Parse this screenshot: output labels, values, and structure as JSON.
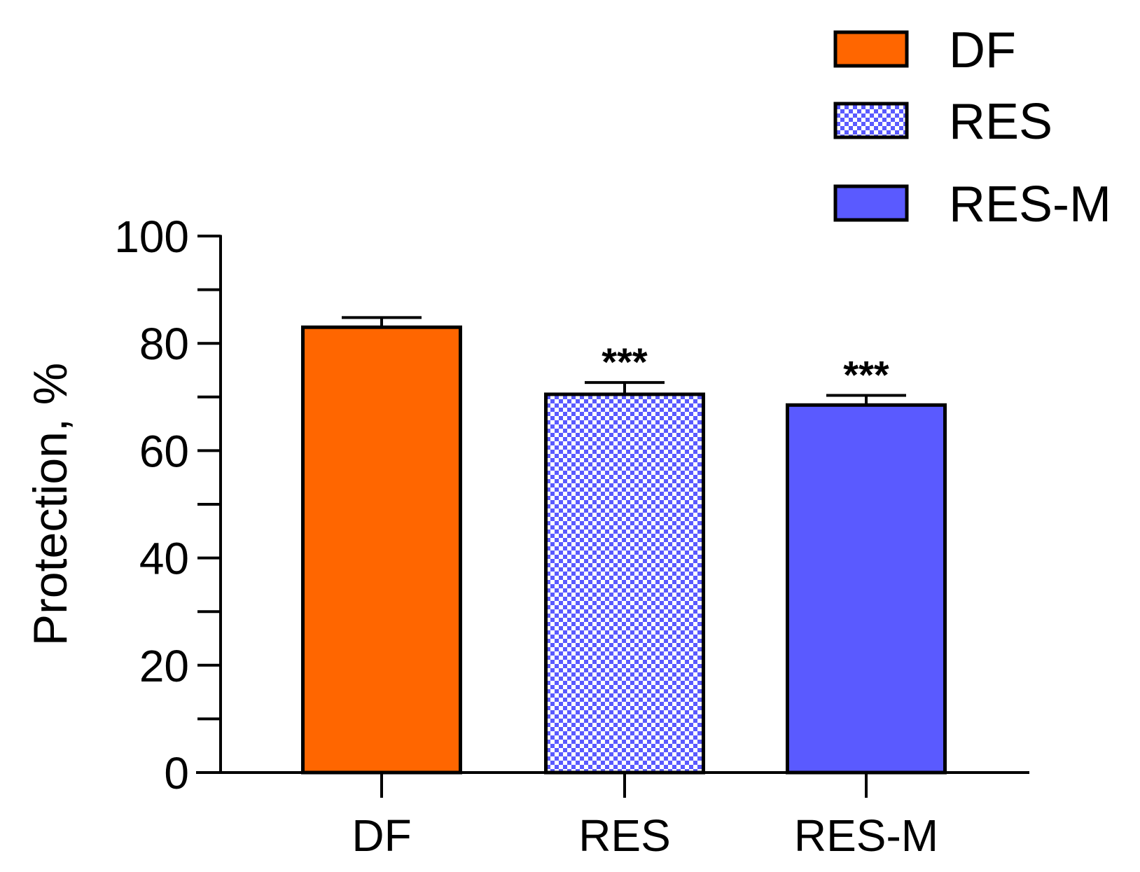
{
  "chart_data": {
    "type": "bar",
    "title": "",
    "xlabel": "",
    "ylabel": "Protection, %",
    "ylim": [
      0,
      100
    ],
    "yticks": [
      0,
      20,
      40,
      60,
      80,
      100
    ],
    "grid": false,
    "legend_position": "top-right",
    "categories": [
      "DF",
      "RES",
      "RES-M"
    ],
    "values": [
      83,
      70.5,
      68.5
    ],
    "errors": [
      1.8,
      2.2,
      1.8
    ],
    "significance": [
      "",
      "***",
      "***"
    ],
    "colors": [
      "#ff6600",
      "#5a5aff",
      "#5a5aff"
    ],
    "fills": [
      "solid",
      "checker",
      "solid"
    ],
    "legend": [
      {
        "label": "DF",
        "color": "#ff6600",
        "fill": "solid"
      },
      {
        "label": "RES",
        "color": "#5a5aff",
        "fill": "checker"
      },
      {
        "label": "RES-M",
        "color": "#5a5aff",
        "fill": "solid"
      }
    ]
  }
}
